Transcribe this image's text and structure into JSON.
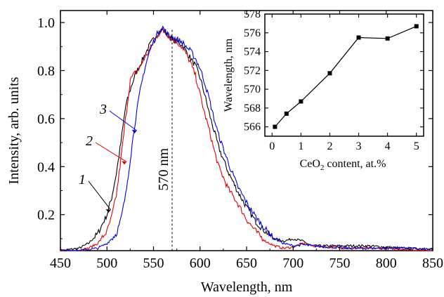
{
  "chart_data": [
    {
      "type": "line",
      "xlabel": "Wavelength, nm",
      "ylabel": "Intensity, arb. units",
      "xlim": [
        450,
        850
      ],
      "ylim": [
        0.05,
        1.05
      ],
      "xticks": [
        "450",
        "500",
        "550",
        "600",
        "650",
        "700",
        "750",
        "800",
        "850"
      ],
      "yticks": [
        "0.2",
        "0.4",
        "0.6",
        "0.8",
        "1.0"
      ],
      "grid": false,
      "annotation": {
        "text": "570 nm",
        "x": 570
      },
      "series": [
        {
          "name": "1",
          "color": "#000000",
          "x": [
            450,
            470,
            480,
            490,
            500,
            505,
            510,
            515,
            520,
            525,
            530,
            535,
            540,
            545,
            550,
            555,
            560,
            565,
            570,
            575,
            580,
            585,
            590,
            595,
            600,
            605,
            610,
            615,
            620,
            630,
            640,
            650,
            660,
            670,
            680,
            690,
            700,
            710,
            720,
            740,
            760,
            780,
            800,
            820,
            850
          ],
          "y": [
            0.05,
            0.06,
            0.08,
            0.12,
            0.2,
            0.27,
            0.37,
            0.5,
            0.65,
            0.72,
            0.78,
            0.82,
            0.86,
            0.9,
            0.93,
            0.96,
            0.97,
            0.95,
            0.93,
            0.92,
            0.91,
            0.88,
            0.85,
            0.82,
            0.77,
            0.7,
            0.62,
            0.55,
            0.48,
            0.38,
            0.3,
            0.23,
            0.17,
            0.13,
            0.1,
            0.09,
            0.1,
            0.09,
            0.07,
            0.07,
            0.07,
            0.07,
            0.065,
            0.06,
            0.055
          ]
        },
        {
          "name": "2",
          "color": "#e00000",
          "x": [
            450,
            470,
            480,
            490,
            500,
            505,
            510,
            515,
            520,
            525,
            530,
            535,
            540,
            545,
            550,
            555,
            560,
            565,
            570,
            575,
            580,
            585,
            590,
            595,
            600,
            605,
            610,
            615,
            620,
            630,
            640,
            650,
            660,
            670,
            680,
            690,
            700,
            710,
            720,
            740,
            760,
            780,
            800,
            820,
            850
          ],
          "y": [
            0.05,
            0.05,
            0.06,
            0.08,
            0.13,
            0.19,
            0.28,
            0.43,
            0.6,
            0.76,
            0.79,
            0.81,
            0.85,
            0.88,
            0.92,
            0.95,
            0.97,
            0.95,
            0.93,
            0.92,
            0.9,
            0.87,
            0.83,
            0.78,
            0.7,
            0.62,
            0.55,
            0.47,
            0.4,
            0.31,
            0.25,
            0.18,
            0.13,
            0.09,
            0.07,
            0.06,
            0.065,
            0.08,
            0.07,
            0.065,
            0.06,
            0.06,
            0.06,
            0.055,
            0.05
          ]
        },
        {
          "name": "3",
          "color": "#0000e0",
          "x": [
            450,
            470,
            480,
            490,
            500,
            510,
            515,
            520,
            525,
            530,
            535,
            540,
            545,
            550,
            555,
            560,
            565,
            570,
            575,
            580,
            585,
            590,
            595,
            600,
            605,
            610,
            615,
            620,
            630,
            640,
            650,
            660,
            670,
            680,
            690,
            700,
            710,
            720,
            740,
            760,
            780,
            800,
            820,
            850
          ],
          "y": [
            0.05,
            0.05,
            0.055,
            0.06,
            0.08,
            0.12,
            0.18,
            0.28,
            0.43,
            0.58,
            0.7,
            0.8,
            0.87,
            0.92,
            0.96,
            0.98,
            0.95,
            0.94,
            0.93,
            0.92,
            0.9,
            0.88,
            0.85,
            0.81,
            0.75,
            0.68,
            0.6,
            0.53,
            0.42,
            0.32,
            0.25,
            0.19,
            0.14,
            0.1,
            0.08,
            0.07,
            0.075,
            0.07,
            0.065,
            0.06,
            0.06,
            0.06,
            0.06,
            0.055
          ]
        }
      ]
    },
    {
      "type": "line",
      "xlabel_pre": "CeO",
      "xlabel_sub": "2",
      "xlabel_post": " content, at.%",
      "ylabel": "Wavelength, nm",
      "xlim": [
        -0.25,
        5.25
      ],
      "ylim": [
        565,
        578
      ],
      "xticks": [
        "0",
        "1",
        "2",
        "3",
        "4",
        "5"
      ],
      "yticks": [
        "566",
        "568",
        "570",
        "572",
        "574",
        "576",
        "578"
      ],
      "series": [
        {
          "color": "#000000",
          "marker": "square",
          "x": [
            0.1,
            0.5,
            1,
            2,
            3,
            4,
            5
          ],
          "y": [
            566.0,
            567.4,
            568.7,
            571.7,
            575.5,
            575.4,
            576.7
          ]
        }
      ]
    }
  ]
}
